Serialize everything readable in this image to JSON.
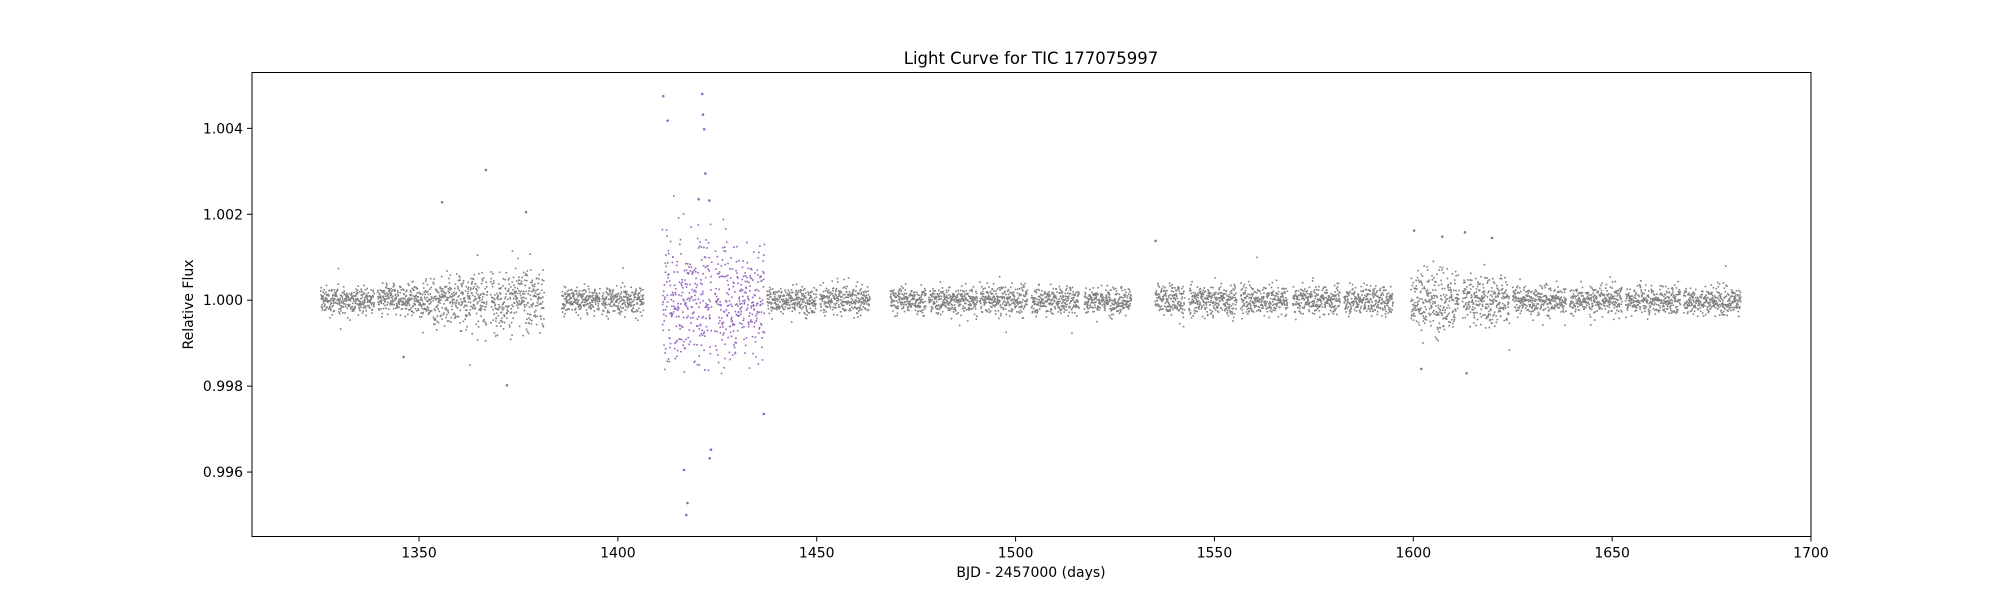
{
  "chart_data": {
    "type": "scatter",
    "title": "Light Curve for TIC 177075997",
    "xlabel": "BJD - 2457000 (days)",
    "ylabel": "Relative Flux",
    "xlim": [
      1308,
      1700
    ],
    "ylim": [
      0.9945,
      1.0053
    ],
    "xticks": [
      1350,
      1400,
      1450,
      1500,
      1550,
      1600,
      1650,
      1700
    ],
    "xtick_labels": [
      "1350",
      "1400",
      "1450",
      "1500",
      "1550",
      "1600",
      "1650",
      "1700"
    ],
    "yticks": [
      0.996,
      0.998,
      1.0,
      1.002,
      1.004
    ],
    "ytick_labels": [
      "0.996",
      "0.998",
      "1.000",
      "1.002",
      "1.004"
    ],
    "grid": false,
    "legend": "none",
    "colors": {
      "normal": "#808080",
      "highlight": "#9467bd"
    },
    "segments": [
      {
        "x": [
          1325.3,
          1338.8
        ],
        "sigma": 0.00016,
        "color": "normal"
      },
      {
        "x": [
          1339.6,
          1353.2
        ],
        "sigma": 0.00018,
        "color": "normal"
      },
      {
        "x": [
          1353.5,
          1367.2
        ],
        "sigma": 0.00032,
        "color": "normal"
      },
      {
        "x": [
          1368.0,
          1381.5
        ],
        "sigma": 0.00034,
        "color": "normal"
      },
      {
        "x": [
          1385.9,
          1395.5
        ],
        "sigma": 0.00016,
        "color": "normal"
      },
      {
        "x": [
          1396.0,
          1406.5
        ],
        "sigma": 0.00016,
        "color": "normal"
      },
      {
        "x": [
          1411.2,
          1423.6
        ],
        "sigma": 0.00075,
        "color": "highlight"
      },
      {
        "x": [
          1424.4,
          1436.9
        ],
        "sigma": 0.00065,
        "color": "highlight"
      },
      {
        "x": [
          1437.5,
          1450.0
        ],
        "sigma": 0.00016,
        "color": "normal"
      },
      {
        "x": [
          1450.8,
          1463.4
        ],
        "sigma": 0.00016,
        "color": "normal"
      },
      {
        "x": [
          1468.5,
          1477.5
        ],
        "sigma": 0.00016,
        "color": "normal"
      },
      {
        "x": [
          1478.2,
          1490.4
        ],
        "sigma": 0.00016,
        "color": "normal"
      },
      {
        "x": [
          1491.0,
          1503.0
        ],
        "sigma": 0.00016,
        "color": "normal"
      },
      {
        "x": [
          1504.0,
          1516.0
        ],
        "sigma": 0.00016,
        "color": "normal"
      },
      {
        "x": [
          1517.3,
          1529.1
        ],
        "sigma": 0.00016,
        "color": "normal"
      },
      {
        "x": [
          1535.1,
          1542.5
        ],
        "sigma": 0.00018,
        "color": "normal"
      },
      {
        "x": [
          1543.6,
          1555.6
        ],
        "sigma": 0.00018,
        "color": "normal"
      },
      {
        "x": [
          1556.6,
          1568.4
        ],
        "sigma": 0.00018,
        "color": "normal"
      },
      {
        "x": [
          1569.7,
          1581.6
        ],
        "sigma": 0.00016,
        "color": "normal"
      },
      {
        "x": [
          1582.6,
          1594.9
        ],
        "sigma": 0.00016,
        "color": "normal"
      },
      {
        "x": [
          1599.4,
          1611.5
        ],
        "sigma": 0.00038,
        "color": "normal"
      },
      {
        "x": [
          1612.4,
          1624.2
        ],
        "sigma": 0.0003,
        "color": "normal"
      },
      {
        "x": [
          1625.0,
          1638.5
        ],
        "sigma": 0.00016,
        "color": "normal"
      },
      {
        "x": [
          1639.4,
          1652.5
        ],
        "sigma": 0.00016,
        "color": "normal"
      },
      {
        "x": [
          1653.4,
          1667.2
        ],
        "sigma": 0.00016,
        "color": "normal"
      },
      {
        "x": [
          1668.0,
          1682.4
        ],
        "sigma": 0.00016,
        "color": "normal"
      }
    ],
    "outliers": [
      {
        "x": 1366.8,
        "y": 1.00303,
        "color": "normal"
      },
      {
        "x": 1355.8,
        "y": 1.00228,
        "color": "normal"
      },
      {
        "x": 1372.1,
        "y": 0.99802,
        "color": "normal"
      },
      {
        "x": 1346.1,
        "y": 0.99868,
        "color": "normal"
      },
      {
        "x": 1376.9,
        "y": 1.00205,
        "color": "normal"
      },
      {
        "x": 1411.4,
        "y": 1.00475,
        "color": "highlight"
      },
      {
        "x": 1412.5,
        "y": 1.00418,
        "color": "highlight"
      },
      {
        "x": 1421.2,
        "y": 1.0048,
        "color": "highlight"
      },
      {
        "x": 1421.4,
        "y": 1.00432,
        "color": "highlight"
      },
      {
        "x": 1417.2,
        "y": 0.995,
        "color": "highlight"
      },
      {
        "x": 1417.5,
        "y": 0.99528,
        "color": "highlight"
      },
      {
        "x": 1423.1,
        "y": 0.99632,
        "color": "highlight"
      },
      {
        "x": 1423.4,
        "y": 0.99652,
        "color": "highlight"
      },
      {
        "x": 1416.6,
        "y": 0.99605,
        "color": "highlight"
      },
      {
        "x": 1421.7,
        "y": 1.00398,
        "color": "highlight"
      },
      {
        "x": 1422.0,
        "y": 1.00295,
        "color": "highlight"
      },
      {
        "x": 1436.7,
        "y": 0.99735,
        "color": "highlight"
      },
      {
        "x": 1420.3,
        "y": 1.00235,
        "color": "highlight"
      },
      {
        "x": 1423.0,
        "y": 1.00232,
        "color": "highlight"
      },
      {
        "x": 1535.2,
        "y": 1.00138,
        "color": "normal"
      },
      {
        "x": 1600.2,
        "y": 1.00162,
        "color": "normal"
      },
      {
        "x": 1613.0,
        "y": 1.00158,
        "color": "normal"
      },
      {
        "x": 1613.4,
        "y": 0.9983,
        "color": "normal"
      },
      {
        "x": 1619.8,
        "y": 1.00145,
        "color": "normal"
      },
      {
        "x": 1607.3,
        "y": 1.00148,
        "color": "normal"
      },
      {
        "x": 1602.0,
        "y": 0.9984,
        "color": "normal"
      }
    ]
  }
}
